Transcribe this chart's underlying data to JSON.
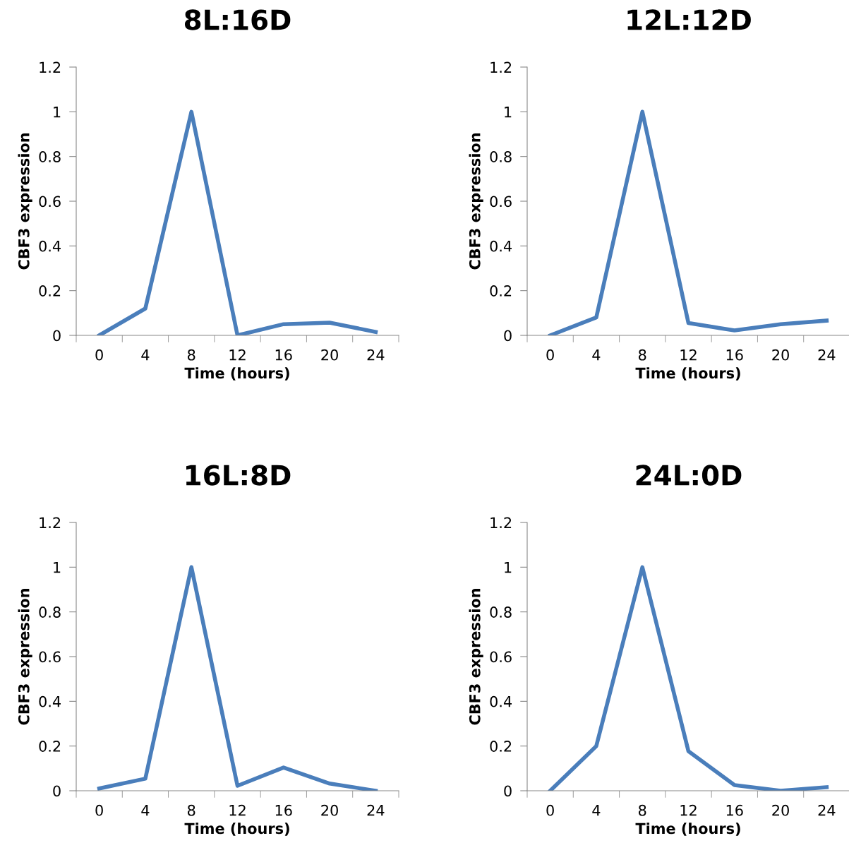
{
  "chart_data": [
    {
      "type": "line",
      "title": "8L:16D",
      "xlabel": "Time (hours)",
      "ylabel": "CBF3 expression",
      "categories": [
        "0",
        "4",
        "8",
        "12",
        "16",
        "20",
        "24"
      ],
      "series": [
        {
          "color": "#4a7ebb",
          "values": [
            0,
            0.12,
            1,
            0,
            0.05,
            0.057,
            0.015
          ]
        }
      ],
      "ylim": [
        0,
        1.2
      ],
      "yticks": [
        0,
        0.2,
        0.4,
        0.6,
        0.8,
        1,
        1.2
      ],
      "grid": false,
      "legend": false,
      "marker": "none",
      "line_style": "solid"
    },
    {
      "type": "line",
      "title": "12L:12D",
      "xlabel": "Time (hours)",
      "ylabel": "CBF3 expression",
      "categories": [
        "0",
        "4",
        "8",
        "12",
        "16",
        "20",
        "24"
      ],
      "series": [
        {
          "color": "#4a7ebb",
          "values": [
            0,
            0.08,
            1,
            0.055,
            0.022,
            0.05,
            0.066
          ]
        }
      ],
      "ylim": [
        0,
        1.2
      ],
      "yticks": [
        0,
        0.2,
        0.4,
        0.6,
        0.8,
        1,
        1.2
      ],
      "grid": false,
      "legend": false,
      "marker": "none",
      "line_style": "solid"
    },
    {
      "type": "line",
      "title": "16L:8D",
      "xlabel": "Time (hours)",
      "ylabel": "CBF3 expression",
      "categories": [
        "0",
        "4",
        "8",
        "12",
        "16",
        "20",
        "24"
      ],
      "series": [
        {
          "color": "#4a7ebb",
          "values": [
            0.01,
            0.054,
            1,
            0.022,
            0.104,
            0.032,
            0
          ]
        }
      ],
      "ylim": [
        0,
        1.2
      ],
      "yticks": [
        0,
        0.2,
        0.4,
        0.6,
        0.8,
        1,
        1.2
      ],
      "grid": false,
      "legend": false,
      "marker": "none",
      "line_style": "solid"
    },
    {
      "type": "line",
      "title": "24L:0D",
      "xlabel": "Time (hours)",
      "ylabel": "CBF3 expression",
      "categories": [
        "0",
        "4",
        "8",
        "12",
        "16",
        "20",
        "24"
      ],
      "series": [
        {
          "color": "#4a7ebb",
          "values": [
            0,
            0.2,
            1,
            0.177,
            0.025,
            0,
            0.016
          ]
        }
      ],
      "ylim": [
        0,
        1.2
      ],
      "yticks": [
        0,
        0.2,
        0.4,
        0.6,
        0.8,
        1,
        1.2
      ],
      "grid": false,
      "legend": false,
      "marker": "none",
      "line_style": "solid"
    }
  ]
}
